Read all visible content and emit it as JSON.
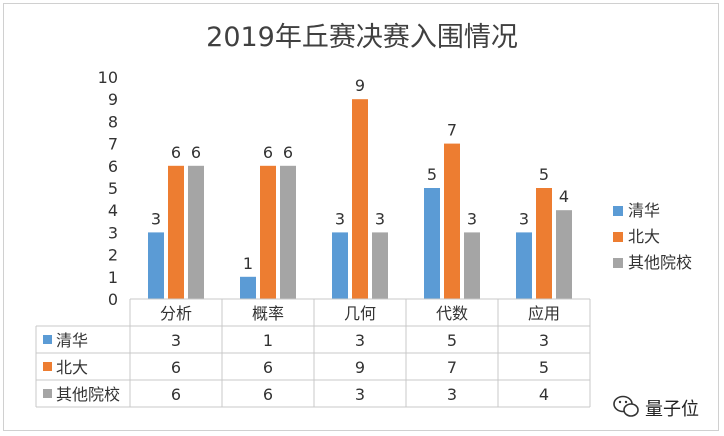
{
  "chart_data": {
    "type": "bar",
    "title": "2019年丘赛决赛入围情况",
    "categories": [
      "分析",
      "概率",
      "几何",
      "代数",
      "应用"
    ],
    "ylim": [
      0,
      10
    ],
    "yticks": [
      0,
      1,
      2,
      3,
      4,
      5,
      6,
      7,
      8,
      9,
      10
    ],
    "grid": false,
    "legend_position": "right",
    "data_table": true,
    "series": [
      {
        "name": "清华",
        "color": "#5b9bd5",
        "values": [
          3,
          1,
          3,
          5,
          3
        ]
      },
      {
        "name": "北大",
        "color": "#ed7d31",
        "values": [
          6,
          6,
          9,
          7,
          5
        ]
      },
      {
        "name": "其他院校",
        "color": "#a5a5a5",
        "values": [
          6,
          6,
          3,
          3,
          4
        ]
      }
    ]
  },
  "watermark": {
    "text": "量子位",
    "icon": "wechat-icon"
  }
}
